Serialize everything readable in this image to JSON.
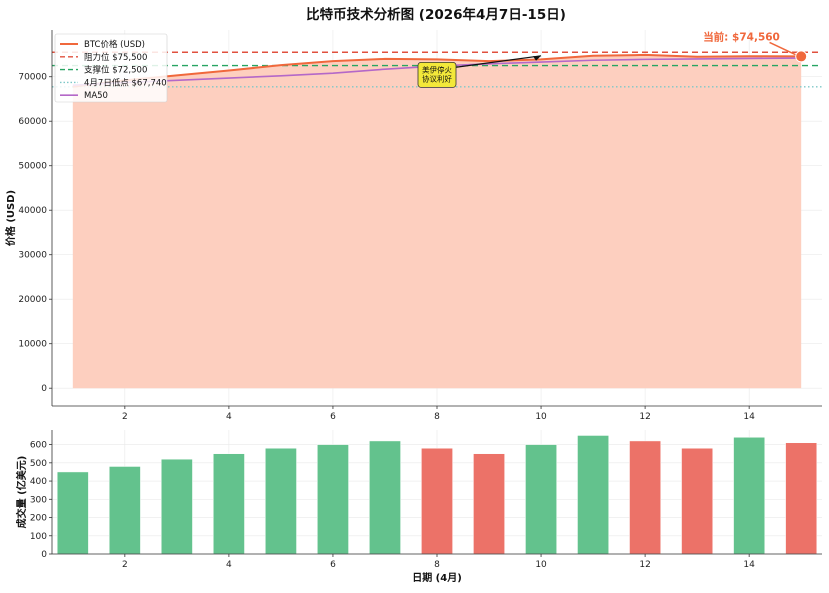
{
  "title": "比特币技术分析图 (2026年4月7日-15日)",
  "colors": {
    "price_line": "#F0683C",
    "price_fill": "#FDCFBF",
    "resistance": "#E0503E",
    "support": "#27A562",
    "low": "#7EC8C8",
    "ma50": "#B468C8",
    "bar_up": "#63C28D",
    "bar_down": "#EC7268",
    "annotation_bg": "#F3E83A",
    "current_marker": "#F0683C"
  },
  "chart_data": [
    {
      "type": "area",
      "ylabel": "价格 (USD)",
      "xlim": [
        0.6,
        15.4
      ],
      "ylim": [
        -4000,
        80500
      ],
      "xticks": [
        2,
        4,
        6,
        8,
        10,
        12,
        14
      ],
      "yticks": [
        0,
        10000,
        20000,
        30000,
        40000,
        50000,
        60000,
        70000
      ],
      "grid": true,
      "legend_position": "top-left",
      "series": [
        {
          "name": "BTC价格 (USD)",
          "style": "line+fill",
          "x": [
            1,
            2,
            3,
            4,
            5,
            6,
            7,
            8,
            9,
            10,
            11,
            12,
            13,
            14,
            15
          ],
          "y": [
            67740,
            69200,
            70300,
            71400,
            72600,
            73500,
            74000,
            73900,
            73500,
            73900,
            74700,
            74900,
            74500,
            74600,
            74560
          ]
        },
        {
          "name": "MA50",
          "style": "line",
          "x": [
            1,
            2,
            3,
            4,
            5,
            6,
            7,
            8,
            9,
            10,
            11,
            12,
            13,
            14,
            15
          ],
          "y": [
            68100,
            68700,
            69200,
            69700,
            70200,
            70800,
            71700,
            72400,
            72900,
            73300,
            73700,
            73900,
            74000,
            74100,
            74200
          ]
        }
      ],
      "reference_lines": [
        {
          "name": "阻力位 $75,500",
          "y": 75500,
          "style": "dashed",
          "color_key": "resistance"
        },
        {
          "name": "支撑位 $72,500",
          "y": 72500,
          "style": "dashed",
          "color_key": "support"
        },
        {
          "name": "4月7日低点 $67,740",
          "y": 67740,
          "style": "dotted",
          "color_key": "low"
        }
      ],
      "annotations": [
        {
          "text": "美伊停火\n协议利好",
          "box_x": 8,
          "box_y": 70300,
          "arrow_to_x": 10,
          "arrow_to_y": 74700
        },
        {
          "text": "当前: $74,560",
          "x": 15,
          "y": 74560,
          "label_x": 13.2,
          "label_y": 78600
        }
      ]
    },
    {
      "type": "bar",
      "xlabel": "日期 (4月)",
      "ylabel": "成交量 (亿美元)",
      "xlim": [
        0.6,
        15.4
      ],
      "ylim": [
        0,
        680
      ],
      "xticks": [
        2,
        4,
        6,
        8,
        10,
        12,
        14
      ],
      "yticks": [
        0,
        100,
        200,
        300,
        400,
        500,
        600
      ],
      "grid": true,
      "x": [
        1,
        2,
        3,
        4,
        5,
        6,
        7,
        8,
        9,
        10,
        11,
        12,
        13,
        14,
        15
      ],
      "values": [
        450,
        480,
        520,
        550,
        580,
        600,
        620,
        580,
        550,
        600,
        650,
        620,
        580,
        640,
        610
      ],
      "direction": [
        "up",
        "up",
        "up",
        "up",
        "up",
        "up",
        "up",
        "down",
        "down",
        "up",
        "up",
        "down",
        "down",
        "up",
        "down"
      ]
    }
  ]
}
